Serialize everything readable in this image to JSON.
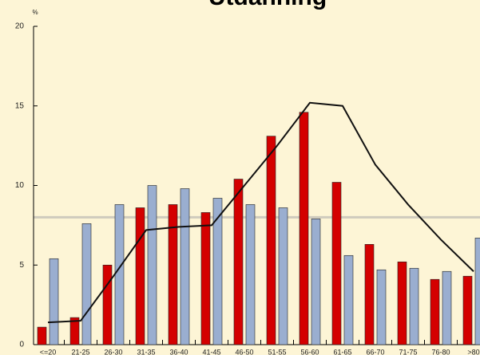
{
  "chart_data": {
    "type": "bar",
    "title": "Utdanning",
    "y_unit_label": "%",
    "categories": [
      "<=20",
      "21-25",
      "26-30",
      "31-35",
      "36-40",
      "41-45",
      "46-50",
      "51-55",
      "56-60",
      "61-65",
      "66-70",
      "71-75",
      "76-80",
      ">80"
    ],
    "series": [
      {
        "type": "bar",
        "color": "#d40000",
        "values": [
          1.1,
          1.7,
          5.0,
          8.6,
          8.8,
          8.3,
          10.4,
          13.1,
          14.6,
          10.2,
          6.3,
          5.2,
          4.1,
          4.3
        ]
      },
      {
        "type": "bar",
        "color": "#9aaed0",
        "values": [
          5.4,
          7.6,
          8.8,
          10.0,
          9.8,
          9.2,
          8.8,
          8.6,
          7.9,
          5.6,
          4.7,
          4.8,
          4.6,
          6.7
        ]
      },
      {
        "type": "line",
        "color": "#111111",
        "values": [
          1.4,
          1.5,
          4.3,
          7.2,
          7.4,
          7.5,
          10.0,
          12.5,
          15.2,
          15.0,
          11.3,
          8.8,
          6.6,
          4.6
        ]
      }
    ],
    "reference_line": 8,
    "reference_color": "#cfcbbd",
    "ylim": [
      0,
      20
    ],
    "yticks": [
      0,
      5,
      10,
      15,
      20
    ]
  }
}
